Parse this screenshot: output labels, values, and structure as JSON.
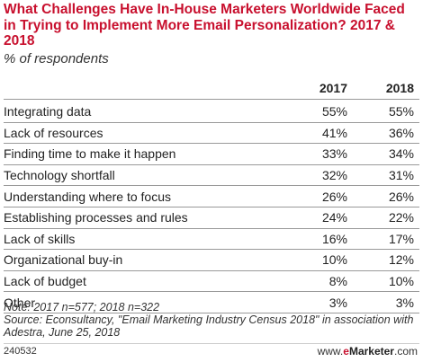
{
  "chart_data": {
    "type": "table",
    "title": "What Challenges Have In-House Marketers Worldwide Faced in Trying to Implement More Email Personalization? 2017 & 2018",
    "subtitle": "% of respondents",
    "columns": [
      "2017",
      "2018"
    ],
    "rows": [
      {
        "label": "Integrating data",
        "values": [
          "55%",
          "55%"
        ]
      },
      {
        "label": "Lack of resources",
        "values": [
          "41%",
          "36%"
        ]
      },
      {
        "label": "Finding time to make it happen",
        "values": [
          "33%",
          "34%"
        ]
      },
      {
        "label": "Technology shortfall",
        "values": [
          "32%",
          "31%"
        ]
      },
      {
        "label": "Understanding where to focus",
        "values": [
          "26%",
          "26%"
        ]
      },
      {
        "label": "Establishing processes and rules",
        "values": [
          "24%",
          "22%"
        ]
      },
      {
        "label": "Lack of skills",
        "values": [
          "16%",
          "17%"
        ]
      },
      {
        "label": "Organizational buy-in",
        "values": [
          "10%",
          "12%"
        ]
      },
      {
        "label": "Lack of budget",
        "values": [
          "8%",
          "10%"
        ]
      },
      {
        "label": "Other",
        "values": [
          "3%",
          "3%"
        ]
      }
    ]
  },
  "notes": {
    "note": "Note: 2017 n=577; 2018 n=322",
    "source": "Source: Econsultancy, \"Email Marketing Industry Census 2018\" in association with Adestra, June 25, 2018"
  },
  "footer": {
    "id": "240532",
    "brand_prefix": "www.",
    "brand_e": "e",
    "brand_name": "Marketer",
    "brand_suffix": ".com"
  },
  "colors": {
    "title": "#c8102e",
    "rule": "#999999"
  }
}
